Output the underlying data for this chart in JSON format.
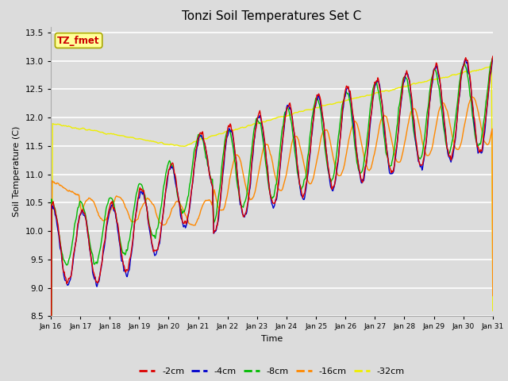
{
  "title": "Tonzi Soil Temperatures Set C",
  "xlabel": "Time",
  "ylabel": "Soil Temperature (C)",
  "ylim": [
    8.5,
    13.6
  ],
  "xlim": [
    0,
    360
  ],
  "plot_bg": "#dcdcdc",
  "fig_bg": "#dcdcdc",
  "annotation_text": "TZ_fmet",
  "annotation_color": "#cc0000",
  "annotation_bg": "#ffff99",
  "annotation_border": "#aaa800",
  "series_colors": {
    "-2cm": "#dd0000",
    "-4cm": "#0000cc",
    "-8cm": "#00bb00",
    "-16cm": "#ff8800",
    "-32cm": "#eeee00"
  },
  "x_tick_labels": [
    "Jan 16",
    "Jan 17",
    "Jan 18",
    "Jan 19",
    "Jan 20",
    "Jan 21",
    "Jan 22",
    "Jan 23",
    "Jan 24",
    "Jan 25",
    "Jan 26",
    "Jan 27",
    "Jan 28",
    "Jan 29",
    "Jan 30",
    "Jan 31"
  ],
  "x_tick_positions": [
    0,
    24,
    48,
    72,
    96,
    120,
    144,
    168,
    192,
    216,
    240,
    264,
    288,
    312,
    336,
    360
  ],
  "y_ticks": [
    8.5,
    9.0,
    9.5,
    10.0,
    10.5,
    11.0,
    11.5,
    12.0,
    12.5,
    13.0,
    13.5
  ],
  "lw": 1.0
}
